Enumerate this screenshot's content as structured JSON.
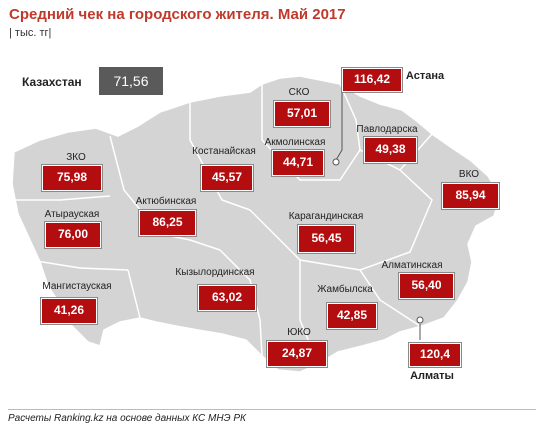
{
  "title": "Средний чек на городского жителя. Май 2017",
  "unit": "| тыс. тг|",
  "country": {
    "label": "Казахстан",
    "value": "71,56"
  },
  "regions": {
    "sko": {
      "name": "СКО",
      "value": "57,01"
    },
    "astana": {
      "name": "Астана",
      "value": "116,42"
    },
    "pavlodar": {
      "name": "Павлодарска",
      "value": "49,38"
    },
    "akmola": {
      "name": "Акмолинская",
      "value": "44,71"
    },
    "kostanay": {
      "name": "Костанайская",
      "value": "45,57"
    },
    "zko": {
      "name": "ЗКО",
      "value": "75,98"
    },
    "atyrau": {
      "name": "Атырауская",
      "value": "76,00"
    },
    "aktobe": {
      "name": "Актюбинская",
      "value": "86,25"
    },
    "vko": {
      "name": "ВКО",
      "value": "85,94"
    },
    "karaganda": {
      "name": "Карагандинская",
      "value": "56,45"
    },
    "almaty_reg": {
      "name": "Алматинская",
      "value": "56,40"
    },
    "mangistau": {
      "name": "Мангистауская",
      "value": "41,26"
    },
    "kyzylorda": {
      "name": "Кызылординская",
      "value": "63,02"
    },
    "zhambyl": {
      "name": "Жамбылска",
      "value": "42,85"
    },
    "uko": {
      "name": "ЮКО",
      "value": "24,87"
    },
    "almaty": {
      "name": "Алматы",
      "value": "120,4"
    }
  },
  "source": "Расчеты Ranking.kz на основе данных  КС МНЭ РК",
  "colors": {
    "title": "#c0392b",
    "value_box": "#b40d10",
    "map_fill": "#d4d4d4",
    "country_box": "#5a5a5a"
  }
}
